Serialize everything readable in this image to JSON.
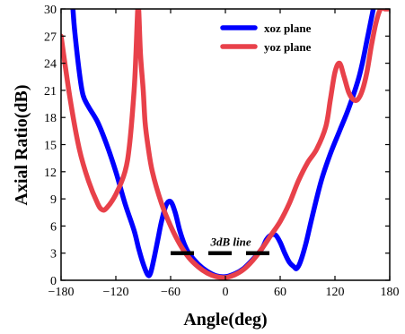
{
  "chart_data": {
    "type": "line",
    "xlabel": "Angle(deg)",
    "ylabel": "Axial Ratio(dB)",
    "xlim": [
      -180,
      180
    ],
    "ylim": [
      0,
      30
    ],
    "xticks": [
      -180,
      -120,
      -60,
      0,
      60,
      120,
      180
    ],
    "yticks": [
      0,
      3,
      6,
      9,
      12,
      15,
      18,
      21,
      24,
      27,
      30
    ],
    "xtick_labels": [
      "−180",
      "−120",
      "−60",
      "0",
      "60",
      "120",
      "180"
    ],
    "ytick_labels": [
      "0",
      "3",
      "6",
      "9",
      "12",
      "15",
      "18",
      "21",
      "24",
      "27",
      "30"
    ],
    "legend_position": "top-right",
    "series": [
      {
        "name": "xoz plane",
        "color": "#0000ff",
        "x": [
          -167,
          -165,
          -160,
          -156,
          -150,
          -140,
          -130,
          -120,
          -110,
          -100,
          -95,
          -90,
          -85,
          -82,
          -78,
          -74,
          -70,
          -65,
          -60,
          -55,
          -50,
          -45,
          -40,
          -30,
          -20,
          -10,
          0,
          10,
          20,
          30,
          40,
          45,
          50,
          55,
          60,
          65,
          70,
          75,
          78,
          82,
          88,
          95,
          105,
          115,
          125,
          135,
          145,
          150,
          155,
          160,
          162
        ],
        "y": [
          30,
          27.5,
          23,
          20.5,
          19.2,
          17.5,
          15,
          12,
          8.5,
          5.5,
          3.5,
          1.8,
          0.6,
          0.8,
          2.5,
          4.5,
          6.5,
          8.3,
          8.7,
          7.5,
          5.5,
          4,
          3,
          1.8,
          1,
          0.5,
          0.4,
          0.7,
          1.3,
          2.3,
          3.5,
          4.5,
          5,
          5,
          4.2,
          3,
          2,
          1.5,
          1.3,
          2,
          4,
          7,
          11,
          14,
          16.5,
          19,
          22,
          24,
          26.5,
          29,
          30
        ]
      },
      {
        "name": "yoz plane",
        "color": "#e8414a",
        "x": [
          -180,
          -170,
          -160,
          -150,
          -140,
          -135,
          -130,
          -120,
          -110,
          -105,
          -100,
          -98,
          -96,
          -95,
          -93,
          -90,
          -88,
          -85,
          -80,
          -70,
          -60,
          -50,
          -40,
          -30,
          -20,
          -10,
          0,
          10,
          20,
          30,
          40,
          50,
          60,
          70,
          80,
          90,
          100,
          110,
          115,
          120,
          125,
          130,
          135,
          140,
          145,
          150,
          155,
          160,
          165,
          170,
          175,
          178
        ],
        "y": [
          27,
          20,
          14.5,
          11,
          8.5,
          7.8,
          8,
          9.5,
          12,
          15,
          21,
          25,
          30,
          30,
          25,
          21,
          17.5,
          15,
          12,
          8.5,
          6,
          4,
          2.5,
          1.5,
          0.8,
          0.4,
          0.3,
          0.6,
          1.2,
          2.2,
          3.5,
          5,
          6.5,
          8.5,
          11,
          13,
          14.5,
          17,
          20,
          23,
          24,
          22.5,
          20.8,
          20,
          20,
          21,
          23,
          26,
          28.5,
          30,
          30,
          30
        ]
      }
    ],
    "annotations": [
      {
        "text": "3dB line",
        "x": 6,
        "y": 3.8,
        "line_y": 3,
        "line_x": [
          -60,
          60
        ]
      }
    ]
  }
}
